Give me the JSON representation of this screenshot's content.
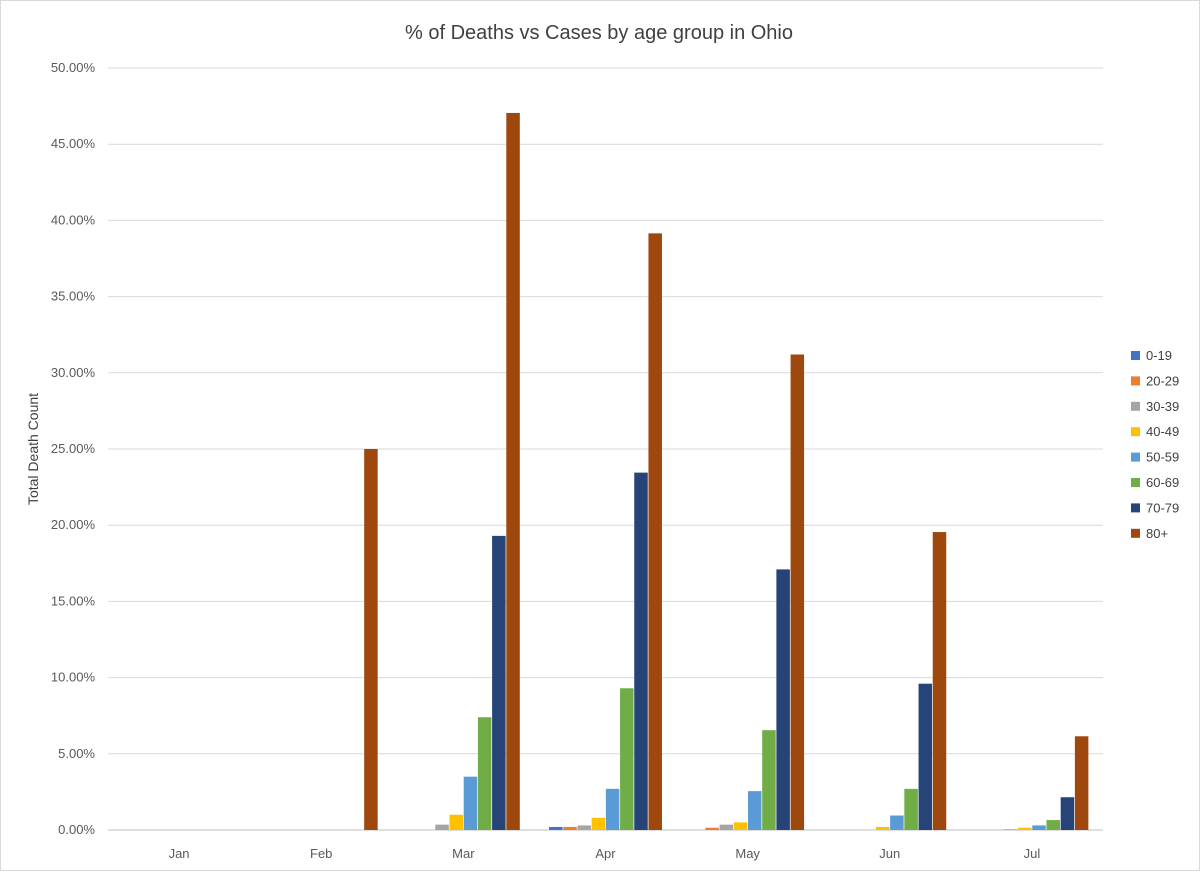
{
  "chart_data": {
    "type": "bar",
    "title": "% of Deaths vs Cases by age group in Ohio",
    "xlabel": "",
    "ylabel": "Total Death Count",
    "categories": [
      "Jan",
      "Feb",
      "Mar",
      "Apr",
      "May",
      "Jun",
      "Jul"
    ],
    "ylim": [
      0,
      50
    ],
    "yticks": [
      "0.00%",
      "5.00%",
      "10.00%",
      "15.00%",
      "20.00%",
      "25.00%",
      "30.00%",
      "35.00%",
      "40.00%",
      "45.00%",
      "50.00%"
    ],
    "ytick_values": [
      0,
      5,
      10,
      15,
      20,
      25,
      30,
      35,
      40,
      45,
      50
    ],
    "grid": true,
    "legend_position": "right",
    "series": [
      {
        "name": "0-19",
        "color": "#4472C4",
        "values": [
          0,
          0,
          0,
          0.2,
          0,
          0,
          0
        ]
      },
      {
        "name": "20-29",
        "color": "#ED7D31",
        "values": [
          0,
          0,
          0,
          0.2,
          0.15,
          0,
          0
        ]
      },
      {
        "name": "30-39",
        "color": "#A5A5A5",
        "values": [
          0,
          0,
          0.35,
          0.3,
          0.35,
          0,
          0.05
        ]
      },
      {
        "name": "40-49",
        "color": "#FFC000",
        "values": [
          0,
          0,
          1.0,
          0.8,
          0.5,
          0.2,
          0.15
        ]
      },
      {
        "name": "50-59",
        "color": "#5B9BD5",
        "values": [
          0,
          0,
          3.5,
          2.7,
          2.55,
          0.95,
          0.3
        ]
      },
      {
        "name": "60-69",
        "color": "#70AD47",
        "values": [
          0,
          0,
          7.4,
          9.3,
          6.55,
          2.7,
          0.65
        ]
      },
      {
        "name": "70-79",
        "color": "#264478",
        "values": [
          0,
          0,
          19.3,
          23.45,
          17.1,
          9.6,
          2.15
        ]
      },
      {
        "name": "80+",
        "color": "#9E480E",
        "values": [
          0,
          25.0,
          47.05,
          39.15,
          31.2,
          19.55,
          6.15
        ]
      }
    ]
  }
}
